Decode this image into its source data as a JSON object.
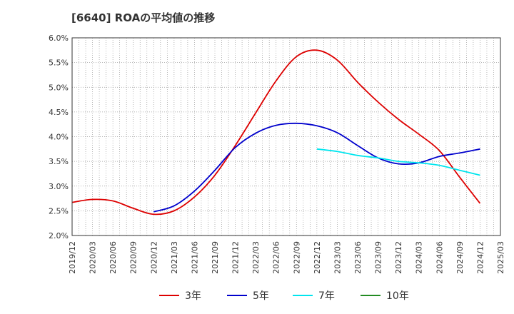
{
  "chart_data": {
    "type": "line",
    "title": "[6640]  ROAの平均値の推移",
    "xlabel": "",
    "ylabel": "",
    "ylim": [
      2.0,
      6.0
    ],
    "yticks": [
      "2.0%",
      "2.5%",
      "3.0%",
      "3.5%",
      "4.0%",
      "4.5%",
      "5.0%",
      "5.5%",
      "6.0%"
    ],
    "x_ticks": [
      "2019/12",
      "2020/03",
      "2020/06",
      "2020/09",
      "2020/12",
      "2021/03",
      "2021/06",
      "2021/09",
      "2021/12",
      "2022/03",
      "2022/06",
      "2022/09",
      "2022/12",
      "2023/03",
      "2023/06",
      "2023/09",
      "2023/12",
      "2024/03",
      "2024/06",
      "2024/09",
      "2024/12",
      "2025/03"
    ],
    "grid": true,
    "legend_position": "bottom",
    "series": [
      {
        "name": "3年",
        "color": "#dd0000",
        "points": [
          [
            "2019/12",
            2.67
          ],
          [
            "2020/03",
            2.73
          ],
          [
            "2020/06",
            2.7
          ],
          [
            "2020/09",
            2.55
          ],
          [
            "2020/12",
            2.43
          ],
          [
            "2021/03",
            2.5
          ],
          [
            "2021/06",
            2.78
          ],
          [
            "2021/09",
            3.22
          ],
          [
            "2021/12",
            3.82
          ],
          [
            "2022/03",
            4.48
          ],
          [
            "2022/06",
            5.13
          ],
          [
            "2022/09",
            5.62
          ],
          [
            "2022/12",
            5.75
          ],
          [
            "2023/03",
            5.55
          ],
          [
            "2023/06",
            5.1
          ],
          [
            "2023/09",
            4.7
          ],
          [
            "2023/12",
            4.35
          ],
          [
            "2024/03",
            4.05
          ],
          [
            "2024/06",
            3.72
          ],
          [
            "2024/09",
            3.18
          ],
          [
            "2024/12",
            2.65
          ]
        ]
      },
      {
        "name": "5年",
        "color": "#0000cc",
        "points": [
          [
            "2020/12",
            2.48
          ],
          [
            "2021/03",
            2.6
          ],
          [
            "2021/06",
            2.9
          ],
          [
            "2021/09",
            3.32
          ],
          [
            "2021/12",
            3.78
          ],
          [
            "2022/03",
            4.07
          ],
          [
            "2022/06",
            4.23
          ],
          [
            "2022/09",
            4.27
          ],
          [
            "2022/12",
            4.22
          ],
          [
            "2023/03",
            4.08
          ],
          [
            "2023/06",
            3.82
          ],
          [
            "2023/09",
            3.57
          ],
          [
            "2023/12",
            3.45
          ],
          [
            "2024/03",
            3.47
          ],
          [
            "2024/06",
            3.6
          ],
          [
            "2024/09",
            3.67
          ],
          [
            "2024/12",
            3.75
          ]
        ]
      },
      {
        "name": "7年",
        "color": "#00e5ee",
        "points": [
          [
            "2022/12",
            3.75
          ],
          [
            "2023/03",
            3.7
          ],
          [
            "2023/06",
            3.62
          ],
          [
            "2023/09",
            3.57
          ],
          [
            "2023/12",
            3.5
          ],
          [
            "2024/03",
            3.47
          ],
          [
            "2024/06",
            3.42
          ],
          [
            "2024/09",
            3.32
          ],
          [
            "2024/12",
            3.22
          ]
        ]
      },
      {
        "name": "10年",
        "color": "#228b22",
        "points": []
      }
    ]
  }
}
